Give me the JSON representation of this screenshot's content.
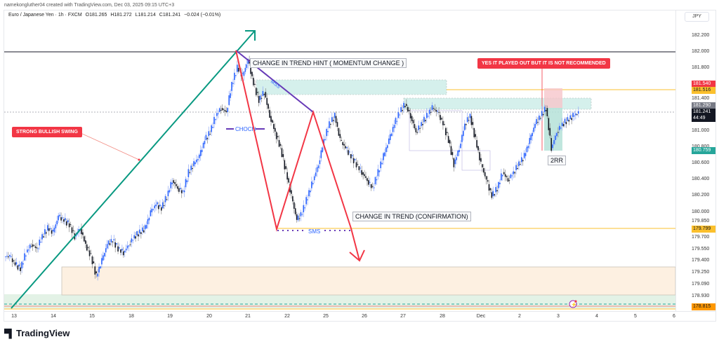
{
  "header": {
    "credit": "namekongluther04 created with TradingView.com, Dec 03, 2025 09:15 UTC+3",
    "symbol": "Euro / Japanese Yen · 1h · FXCM",
    "open": "O181.265",
    "high": "H181.272",
    "low": "L181.214",
    "close": "C181.241",
    "change": "−0.024 (−0.01%)"
  },
  "price_scale": {
    "currency": "JPY",
    "ticks": [
      "182.200",
      "182.000",
      "181.800",
      "181.400",
      "181.000",
      "180.800",
      "180.600",
      "180.400",
      "180.200",
      "180.000",
      "179.850",
      "179.700",
      "179.550",
      "179.400",
      "179.250",
      "179.090",
      "178.930"
    ],
    "tags": [
      {
        "value": "181.540",
        "color": "#f23645",
        "text_color": "#ffffff"
      },
      {
        "value": "181.516",
        "color": "#fbc02d",
        "text_color": "#131722"
      },
      {
        "value": "181.290",
        "color": "#787b86",
        "text_color": "#ffffff"
      },
      {
        "value": "181.241",
        "color": "#131722",
        "text_color": "#ffffff"
      },
      {
        "value": "44:49",
        "color": "#131722",
        "text_color": "#ffffff"
      },
      {
        "value": "180.759",
        "color": "#26a69a",
        "text_color": "#ffffff"
      },
      {
        "value": "179.799",
        "color": "#fbc02d",
        "text_color": "#131722"
      },
      {
        "value": "178.815",
        "color": "#ff9800",
        "text_color": "#131722"
      }
    ]
  },
  "time_axis": {
    "labels": [
      "13",
      "14",
      "15",
      "18",
      "19",
      "20",
      "21",
      "22",
      "25",
      "26",
      "27",
      "28",
      "Dec",
      "2",
      "3",
      "4",
      "5",
      "6"
    ]
  },
  "annotations": {
    "momentum_hint": "CHANGE IN TREND HINT ( MOMENTUM CHANGE )",
    "confirmation": "CHANGE IN TREND (CONFIRMATION)",
    "bullish_swing": "STRONG BULLISH  SWING",
    "not_recommended": "YES IT PLAYED OUT BUT IT IS NOT RECOMMENDED",
    "rr": "2RR",
    "mss": "MSS",
    "choch": "CHOCH",
    "sms": "SMS"
  },
  "colors": {
    "bull_candle": "#2962ff",
    "bear_candle": "#131722",
    "trend_up": "#089981",
    "zigzag": "#f23645",
    "structure": "#673ab7",
    "supply_zone": "#b2dfdb",
    "demand_zone": "#fdebd0",
    "level": "#fbc02d"
  },
  "chart_data": {
    "type": "candlestick",
    "title": "Euro / Japanese Yen · 1h · FXCM",
    "xlabel": "",
    "ylabel": "JPY",
    "ylim": [
      178.8,
      182.35
    ],
    "x_ticks": [
      "13",
      "14",
      "15",
      "18",
      "19",
      "20",
      "21",
      "22",
      "25",
      "26",
      "27",
      "28",
      "Dec",
      "2",
      "3",
      "4",
      "5",
      "6"
    ],
    "key_levels": {
      "swing_high": 182.0,
      "stop_loss": 181.54,
      "supply_top": 181.516,
      "last_price": 181.241,
      "take_profit_low": 180.759,
      "sms_level": 179.799,
      "bottom_level": 178.815
    },
    "ohlc_close_path": [
      179.45,
      179.35,
      179.3,
      179.5,
      179.6,
      179.55,
      179.7,
      179.8,
      179.75,
      179.95,
      179.9,
      179.85,
      179.7,
      179.8,
      179.6,
      179.45,
      179.2,
      179.4,
      179.6,
      179.65,
      179.55,
      179.5,
      179.6,
      179.7,
      179.75,
      179.8,
      180.0,
      180.1,
      180.05,
      180.2,
      180.4,
      180.3,
      180.25,
      180.5,
      180.6,
      180.7,
      180.9,
      181.0,
      181.2,
      181.3,
      181.25,
      181.6,
      181.8,
      181.7,
      181.9,
      181.6,
      181.4,
      181.5,
      181.2,
      181.0,
      180.8,
      180.5,
      180.2,
      179.9,
      180.0,
      180.2,
      180.4,
      180.6,
      180.9,
      181.1,
      181.2,
      180.9,
      180.8,
      180.7,
      180.6,
      180.5,
      180.4,
      180.3,
      180.5,
      180.7,
      180.9,
      181.1,
      181.25,
      181.35,
      181.2,
      181.0,
      181.1,
      181.2,
      181.3,
      181.25,
      181.1,
      180.9,
      180.6,
      180.8,
      181.1,
      181.2,
      180.9,
      180.6,
      180.4,
      180.2,
      180.3,
      180.5,
      180.4,
      180.5,
      180.6,
      180.7,
      180.9,
      181.1,
      181.2,
      181.3,
      180.8,
      181.0,
      181.1,
      181.15,
      181.2,
      181.24
    ],
    "series": [
      {
        "name": "EUR/JPY 1h",
        "values": "see ohlc_close_path"
      }
    ]
  }
}
